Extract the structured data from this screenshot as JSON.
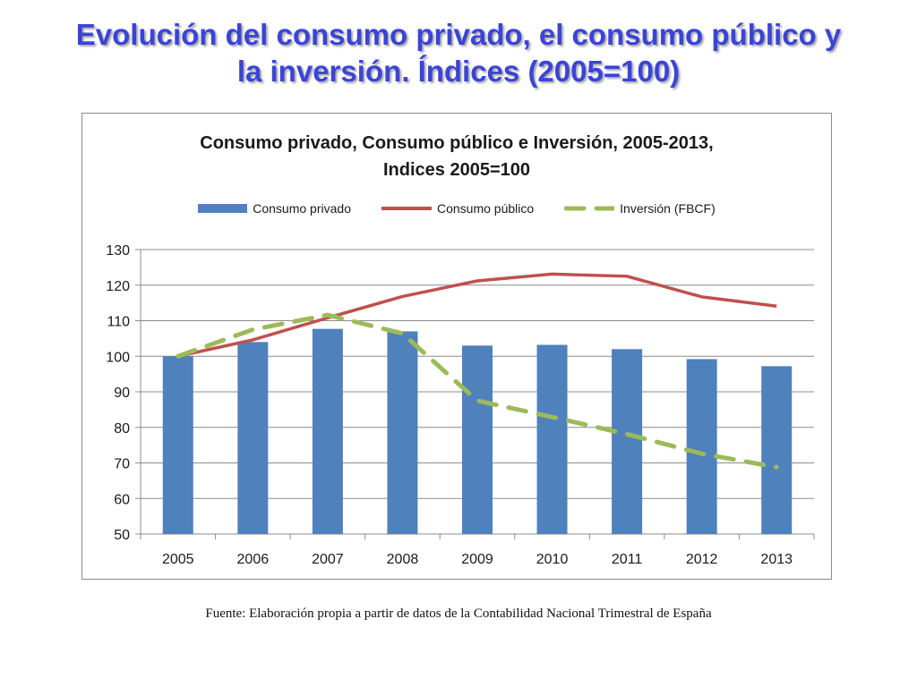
{
  "slide": {
    "title_line1": "Evolución del consumo privado, el consumo público y",
    "title_line2": "la inversión. Índices (2005=100)",
    "footnote": "Fuente: Elaboración propia a partir de datos de la Contabilidad Nacional Trimestral de España"
  },
  "chart_data": {
    "type": "bar",
    "title_line1": "Consumo privado, Consumo público e Inversión, 2005-2013,",
    "title_line2": "Indices 2005=100",
    "categories": [
      "2005",
      "2006",
      "2007",
      "2008",
      "2009",
      "2010",
      "2011",
      "2012",
      "2013"
    ],
    "series": [
      {
        "name": "Consumo privado",
        "type": "bar",
        "color": "#4f81bd",
        "values": [
          100,
          104,
          107.7,
          107,
          103,
          103.2,
          102,
          99.2,
          97.2
        ]
      },
      {
        "name": "Consumo público",
        "type": "line",
        "color": "#c0504d",
        "values": [
          100,
          104.6,
          110.8,
          116.8,
          121.2,
          123.1,
          122.5,
          116.7,
          114.1
        ]
      },
      {
        "name": "Inversión (FBCF)",
        "type": "line-dashed",
        "color": "#9bbb59",
        "values": [
          100,
          107.5,
          111.6,
          106.4,
          87.5,
          82.9,
          78.1,
          72.6,
          68.8
        ]
      }
    ],
    "yticks": [
      "50",
      "60",
      "70",
      "80",
      "90",
      "100",
      "110",
      "120",
      "130"
    ],
    "ylim": [
      50,
      130
    ],
    "xlabel": "",
    "ylabel": "",
    "grid": true,
    "legend_position": "top"
  }
}
